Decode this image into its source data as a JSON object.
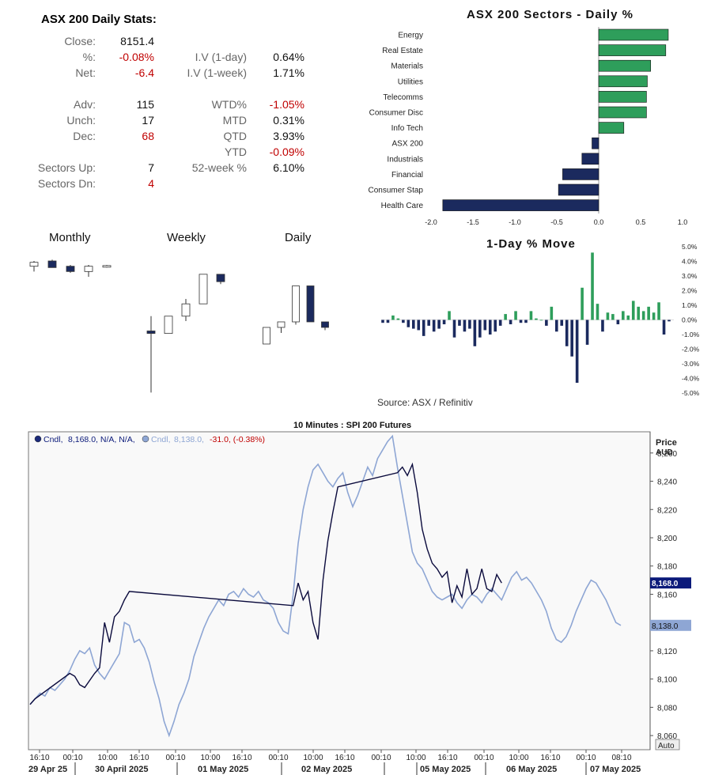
{
  "stats": {
    "title": "ASX 200 Daily Stats:",
    "rows": [
      {
        "l1": "Close:",
        "v1": "8151.4",
        "l2": "",
        "v2": ""
      },
      {
        "l1": "%:",
        "v1": "-0.08%",
        "l2": "I.V (1-day)",
        "v2": "0.64%"
      },
      {
        "l1": "Net:",
        "v1": "-6.4",
        "l2": "I.V (1-week)",
        "v2": "1.71%"
      },
      {
        "l1": "",
        "v1": "",
        "l2": "",
        "v2": ""
      },
      {
        "l1": "Adv:",
        "v1": "115",
        "l2": "WTD%",
        "v2": "-1.05%"
      },
      {
        "l1": "Unch:",
        "v1": "17",
        "l2": "MTD",
        "v2": "0.31%"
      },
      {
        "l1": "Dec:",
        "v1": "68",
        "l2": "QTD",
        "v2": "3.93%"
      },
      {
        "l1": "",
        "v1": "",
        "l2": "YTD",
        "v2": "-0.09%"
      },
      {
        "l1": "Sectors Up:",
        "v1": "7",
        "l2": "52-week %",
        "v2": "6.10%"
      },
      {
        "l1": "Sectors Dn:",
        "v1": "4",
        "l2": "",
        "v2": ""
      }
    ]
  },
  "labels": {
    "monthly": "Monthly",
    "weekly": "Weekly",
    "daily": "Daily",
    "source": "Source: ASX / Refinitiv"
  },
  "colors": {
    "up": "#2e9e5b",
    "down": "#1b2a5e",
    "neg_text": "#c00000",
    "light_series": "#8ea6d4",
    "dark_series": "#0a0a3c"
  },
  "chart_data": [
    {
      "type": "bar",
      "orientation": "horizontal",
      "title": "ASX 200 Sectors - Daily %",
      "categories": [
        "Energy",
        "Real Estate",
        "Materials",
        "Utilities",
        "Telecomms",
        "Consumer Disc",
        "Info Tech",
        "ASX 200",
        "Industrials",
        "Financial",
        "Consumer Stap",
        "Health Care"
      ],
      "values": [
        0.83,
        0.8,
        0.62,
        0.58,
        0.57,
        0.57,
        0.3,
        -0.08,
        -0.2,
        -0.43,
        -0.48,
        -1.86
      ],
      "xlim": [
        -2.0,
        1.0
      ],
      "xticks": [
        "-2.0",
        "-1.5",
        "-1.0",
        "-0.5",
        "0.0",
        "0.5",
        "1.0"
      ]
    },
    {
      "type": "candlestick",
      "title": "Monthly",
      "candles": [
        {
          "o": 100,
          "h": 104,
          "l": 96,
          "c": 103
        },
        {
          "o": 104,
          "h": 105,
          "l": 99,
          "c": 99
        },
        {
          "o": 100,
          "h": 101,
          "l": 95,
          "c": 96
        },
        {
          "o": 96,
          "h": 101,
          "l": 92,
          "c": 100
        },
        {
          "o": 100,
          "h": 101,
          "l": 99,
          "c": 100.5
        }
      ],
      "ylim": [
        80,
        110
      ]
    },
    {
      "type": "candlestick",
      "title": "Weekly",
      "candles": [
        {
          "o": 100,
          "h": 106,
          "l": 75,
          "c": 99
        },
        {
          "o": 99,
          "h": 106,
          "l": 99,
          "c": 106
        },
        {
          "o": 106,
          "h": 113,
          "l": 104,
          "c": 111
        },
        {
          "o": 111,
          "h": 123,
          "l": 111,
          "c": 123
        },
        {
          "o": 123,
          "h": 123,
          "l": 119,
          "c": 120
        }
      ],
      "ylim": [
        70,
        130
      ]
    },
    {
      "type": "candlestick",
      "title": "Daily",
      "candles": [
        {
          "o": 100,
          "h": 106,
          "l": 100,
          "c": 106
        },
        {
          "o": 106,
          "h": 108,
          "l": 104,
          "c": 108
        },
        {
          "o": 108,
          "h": 121,
          "l": 107,
          "c": 121
        },
        {
          "o": 121,
          "h": 121,
          "l": 108,
          "c": 108
        },
        {
          "o": 108,
          "h": 108,
          "l": 105,
          "c": 106
        }
      ],
      "ylim": [
        90,
        130
      ]
    },
    {
      "type": "bar",
      "title": "1-Day % Move",
      "values": [
        -0.2,
        -0.2,
        0.3,
        0.1,
        -0.2,
        -0.5,
        -0.6,
        -0.7,
        -1.1,
        -0.4,
        -0.8,
        -0.6,
        -0.3,
        0.6,
        -1.2,
        -0.4,
        -0.8,
        -0.6,
        -1.8,
        -1.2,
        -0.7,
        -1.0,
        -0.8,
        -0.4,
        0.4,
        -0.3,
        0.6,
        -0.2,
        -0.2,
        0.6,
        0.1,
        0.0,
        -0.4,
        0.9,
        -0.8,
        -0.4,
        -1.8,
        -2.5,
        -4.3,
        2.2,
        -1.7,
        4.6,
        1.1,
        -0.8,
        0.5,
        0.4,
        -0.3,
        0.6,
        0.3,
        1.3,
        0.9,
        0.6,
        0.9,
        0.5,
        1.2,
        -1.0,
        -0.1
      ],
      "ylim": [
        -5.0,
        5.0
      ],
      "yticks": [
        "5.0%",
        "4.0%",
        "3.0%",
        "2.0%",
        "1.0%",
        "0.0%",
        "-1.0%",
        "-2.0%",
        "-3.0%",
        "-4.0%",
        "-5.0%"
      ]
    },
    {
      "type": "line",
      "title": "10 Minutes : SPI 200 Futures",
      "axis_label_1": "Price",
      "axis_label_2": "AUD",
      "legend": {
        "dark_name": "Cndl,",
        "dark_vals": "8,168.0, N/A, N/A,",
        "light_name": "Cndl,",
        "light_vals": "8,138.0,",
        "light_change": "-31.0, (-0.38%)"
      },
      "ylim": [
        8050,
        8275
      ],
      "yticks": [
        "8,260",
        "8,240",
        "8,220",
        "8,200",
        "8,180",
        "8,160",
        "8,140",
        "8,120",
        "8,100",
        "8,080",
        "8,060"
      ],
      "last_dark_label": "8,168.0",
      "last_light_label": "8,138.0",
      "time_ticks": [
        "16:10",
        "00:10",
        "10:00",
        "16:10",
        "00:10",
        "10:00",
        "16:10",
        "00:10",
        "10:00",
        "16:10",
        "00:10",
        "10:00",
        "16:10",
        "00:10",
        "10:00",
        "16:10",
        "00:10",
        "08:10"
      ],
      "dates": [
        "29 Apr 25",
        "30 April 2025",
        "01 May 2025",
        "02 May 2025",
        "05 May 2025",
        "06 May 2025",
        "07 May 2025"
      ],
      "auto_label": "Auto",
      "light_series": [
        8082,
        8086,
        8090,
        8088,
        8094,
        8092,
        8096,
        8100,
        8106,
        8114,
        8120,
        8118,
        8122,
        8110,
        8104,
        8100,
        8106,
        8112,
        8118,
        8140,
        8138,
        8126,
        8128,
        8122,
        8112,
        8098,
        8086,
        8070,
        8060,
        8070,
        8082,
        8090,
        8100,
        8116,
        8126,
        8136,
        8144,
        8150,
        8156,
        8152,
        8160,
        8162,
        8158,
        8164,
        8160,
        8158,
        8162,
        8156,
        8154,
        8150,
        8140,
        8134,
        8132,
        8160,
        8196,
        8220,
        8236,
        8248,
        8252,
        8246,
        8240,
        8236,
        8242,
        8246,
        8232,
        8222,
        8230,
        8240,
        8250,
        8244,
        8256,
        8262,
        8268,
        8272,
        8250,
        8230,
        8210,
        8190,
        8182,
        8178,
        8170,
        8162,
        8158,
        8156,
        8158,
        8160,
        8154,
        8150,
        8156,
        8160,
        8158,
        8154,
        8160,
        8164,
        8160,
        8156,
        8164,
        8172,
        8176,
        8170,
        8172,
        8168,
        8162,
        8156,
        8148,
        8136,
        8128,
        8126,
        8130,
        8138,
        8148,
        8156,
        8164,
        8170,
        8168,
        8162,
        8156,
        8148,
        8140,
        8138
      ],
      "dark_series": [
        8082,
        8086,
        8104,
        8102,
        8096,
        8094,
        8104,
        8108,
        8140,
        8126,
        8144,
        8148,
        8156,
        8162,
        8152,
        8168,
        8156,
        8162,
        8140,
        8128,
        8170,
        8198,
        8218,
        8236,
        8246,
        8250,
        8244,
        8252,
        8232,
        8206,
        8192,
        8182,
        8178,
        8172,
        8176,
        8154,
        8166,
        8158,
        8178,
        8160,
        8164,
        8178,
        8164,
        8162,
        8174,
        8168
      ]
    }
  ]
}
